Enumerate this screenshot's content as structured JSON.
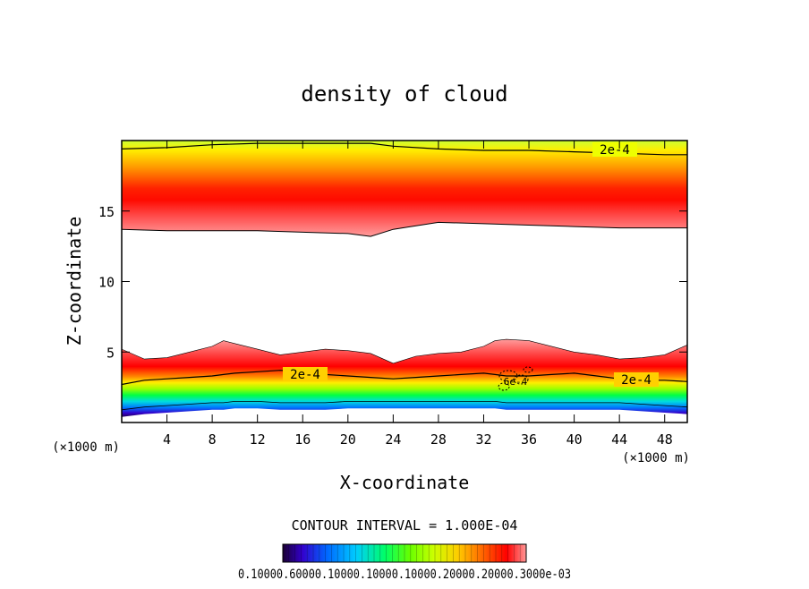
{
  "chart_data": {
    "type": "heatmap",
    "title": "density of cloud",
    "xlabel": "X-coordinate",
    "ylabel": "Z-coordinate",
    "x_unit_left": "(×1000 m)",
    "x_unit_right": "(×1000 m)",
    "xlim": [
      0,
      50
    ],
    "ylim": [
      0,
      20
    ],
    "x_ticks": [
      4,
      8,
      12,
      16,
      20,
      24,
      28,
      32,
      36,
      40,
      44,
      48
    ],
    "y_ticks": [
      5,
      10,
      15
    ],
    "contour_interval_text": "CONTOUR INTERVAL = 1.000E-04",
    "contour_labels": [
      "2e-4",
      "2e-4",
      "2e-4",
      "6e-4"
    ],
    "colorbar_text": "0.10000.60000.10000.10000.10000.20000.20000.3000e-03",
    "colormap": [
      "#1a0033",
      "#3300cc",
      "#0066ff",
      "#00ccff",
      "#00ff66",
      "#66ff00",
      "#ccff00",
      "#ffcc00",
      "#ff6600",
      "#ff0000",
      "#ff9999"
    ],
    "upper_cloud_layer": {
      "x": [
        0,
        4,
        8,
        12,
        16,
        20,
        22,
        24,
        28,
        32,
        36,
        40,
        44,
        48,
        50
      ],
      "base": [
        13.7,
        13.6,
        13.6,
        13.6,
        13.5,
        13.4,
        13.2,
        13.7,
        14.2,
        14.1,
        14.0,
        13.9,
        13.8,
        13.8,
        13.8
      ],
      "core": [
        15.4,
        15.4,
        15.6,
        15.8,
        15.8,
        15.6,
        15.3,
        15.5,
        15.9,
        16.0,
        15.9,
        15.8,
        15.7,
        15.6,
        15.6
      ],
      "top_contour": [
        19.4,
        19.5,
        19.7,
        19.8,
        19.8,
        19.8,
        19.8,
        19.6,
        19.4,
        19.3,
        19.3,
        19.2,
        19.1,
        19.0,
        19.0
      ]
    },
    "lower_cloud_layer": {
      "x": [
        0,
        2,
        4,
        6,
        8,
        9,
        10,
        12,
        14,
        16,
        18,
        20,
        22,
        24,
        26,
        28,
        30,
        32,
        33,
        34,
        36,
        38,
        40,
        42,
        44,
        46,
        48,
        50
      ],
      "top": [
        5.2,
        4.5,
        4.6,
        5.0,
        5.4,
        5.8,
        5.6,
        5.2,
        4.8,
        5.0,
        5.2,
        5.1,
        4.9,
        4.2,
        4.7,
        4.9,
        5.0,
        5.4,
        5.8,
        5.9,
        5.8,
        5.4,
        5.0,
        4.8,
        4.5,
        4.6,
        4.8,
        5.5
      ],
      "contour_2e4": [
        2.7,
        3.0,
        3.1,
        3.2,
        3.3,
        3.4,
        3.5,
        3.6,
        3.7,
        3.6,
        3.4,
        3.3,
        3.2,
        3.1,
        3.2,
        3.3,
        3.4,
        3.5,
        3.4,
        3.3,
        3.3,
        3.4,
        3.5,
        3.3,
        3.1,
        3.0,
        3.0,
        2.9
      ],
      "base": [
        0.4,
        0.6,
        0.7,
        0.8,
        0.9,
        0.9,
        1.0,
        1.0,
        0.9,
        0.9,
        0.9,
        1.0,
        1.0,
        1.0,
        1.0,
        1.0,
        1.0,
        1.0,
        1.0,
        0.9,
        0.9,
        0.9,
        0.9,
        0.9,
        0.9,
        0.8,
        0.7,
        0.6
      ]
    }
  }
}
